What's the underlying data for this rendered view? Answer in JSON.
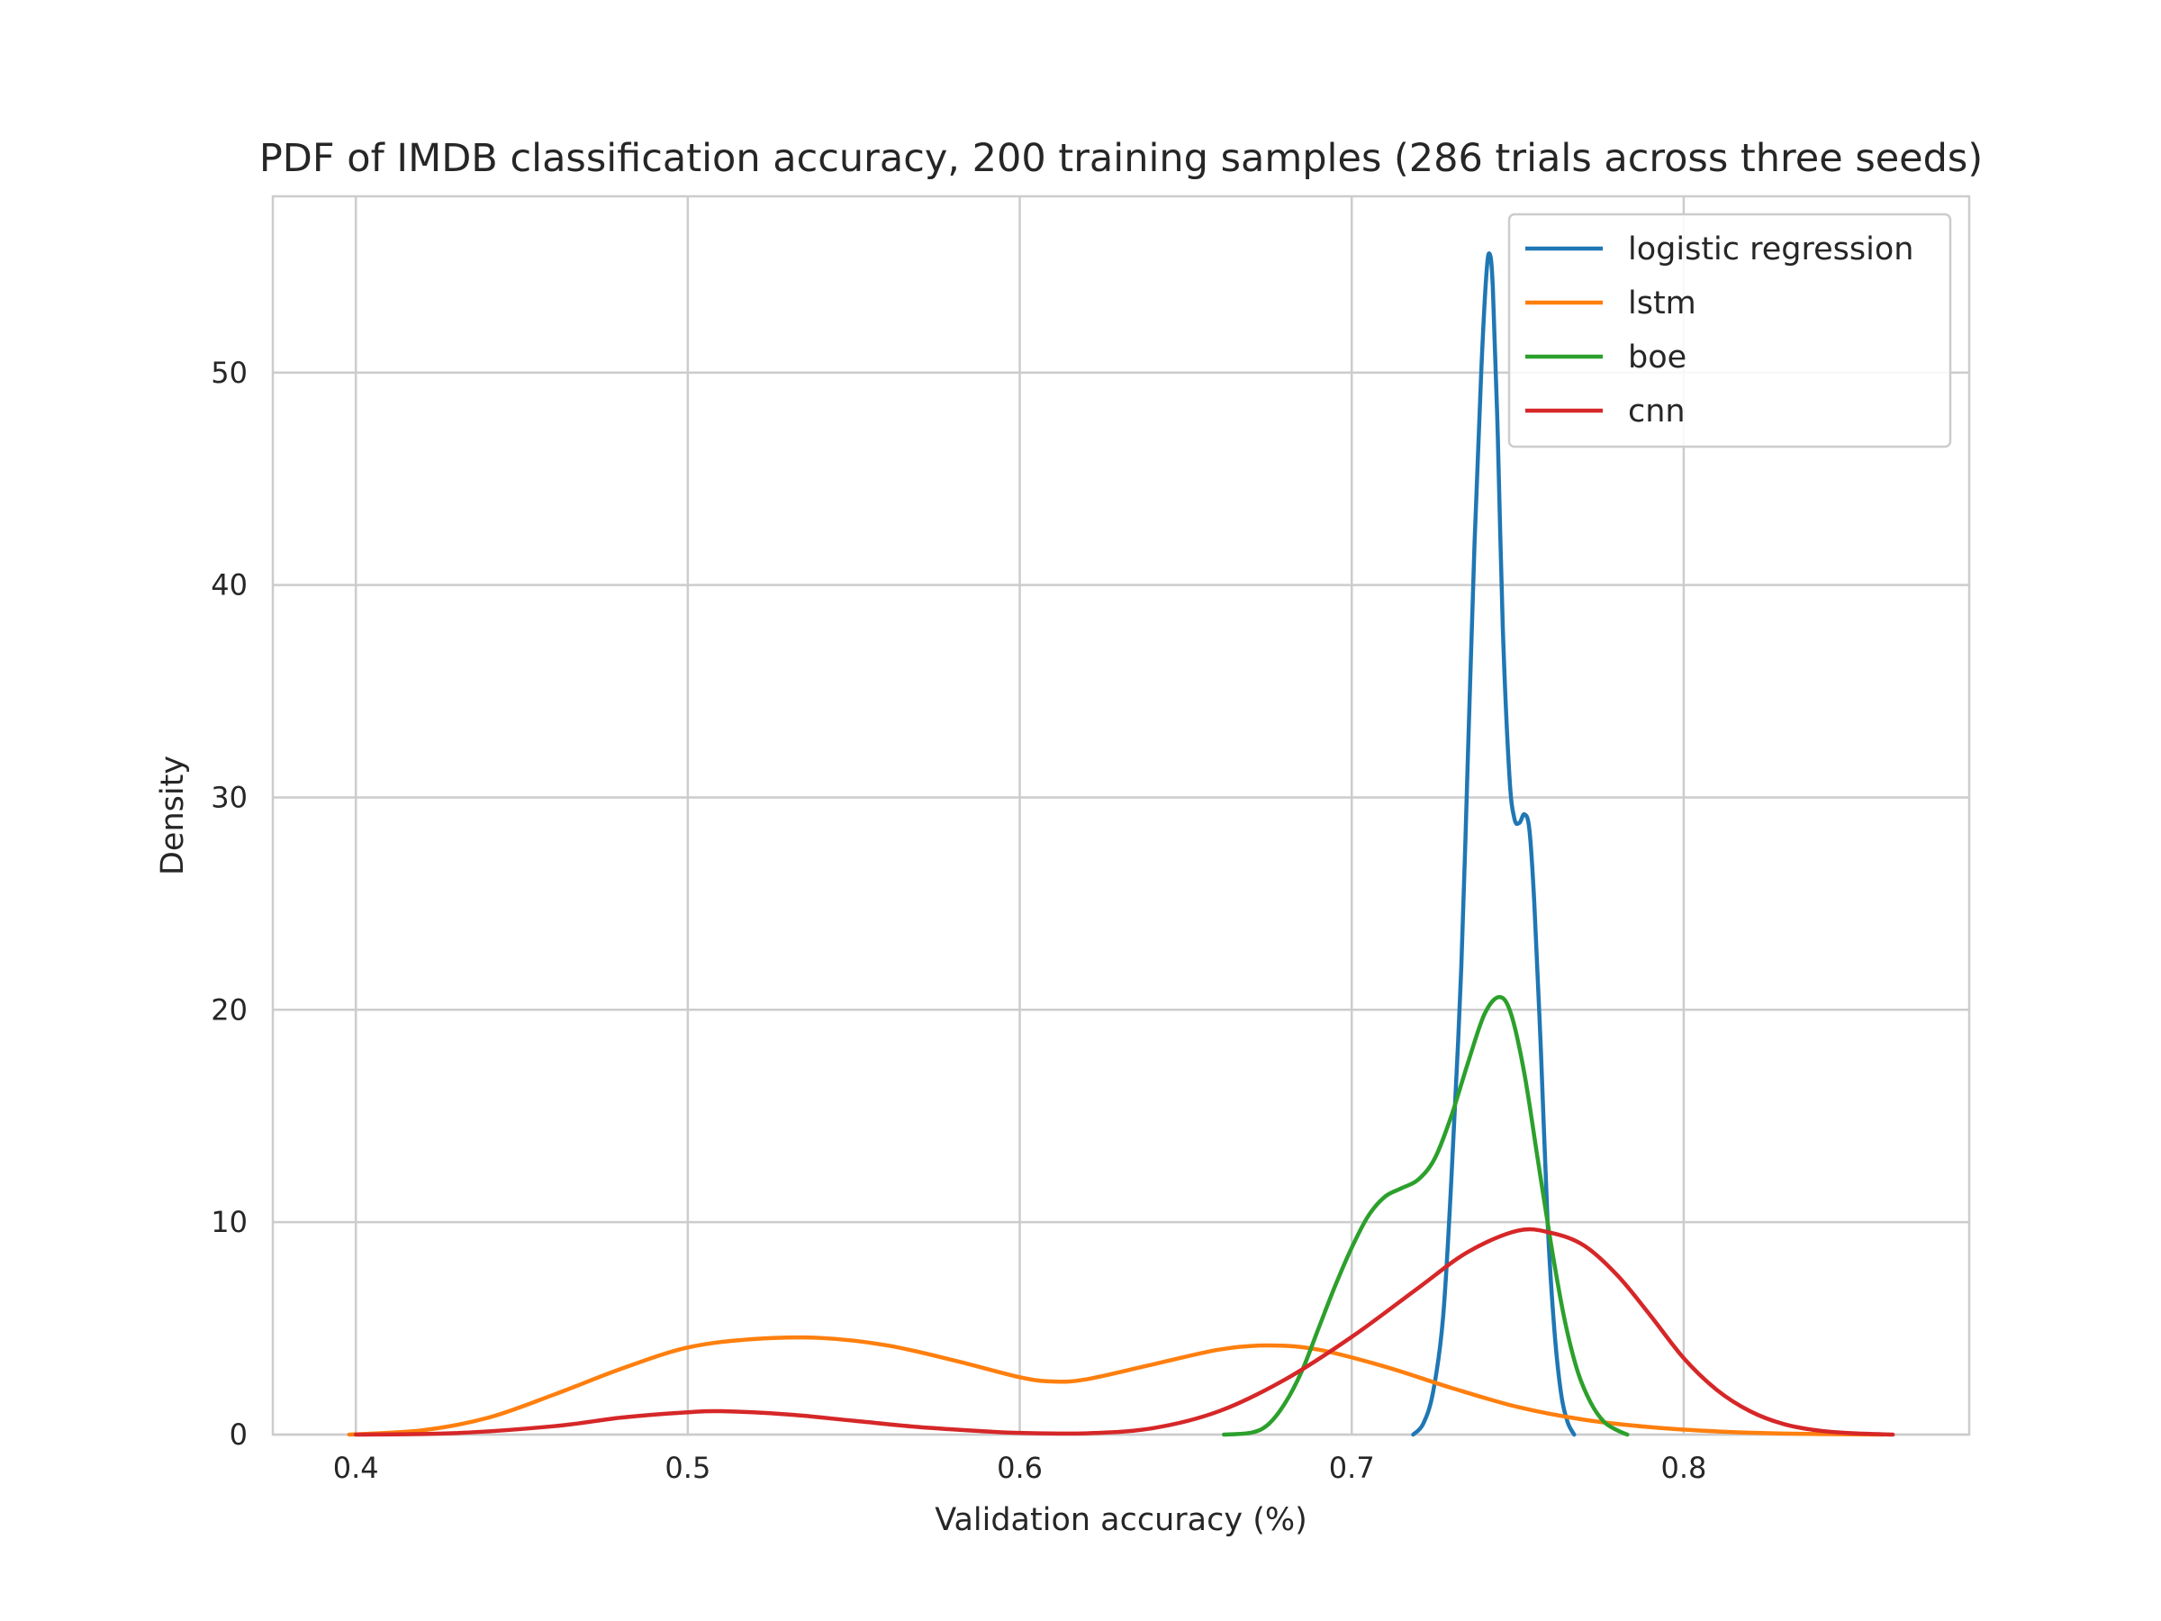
{
  "chart_data": {
    "type": "line",
    "title": "PDF of IMDB classification accuracy, 200 training samples (286 trials across three seeds)",
    "xlabel": "Validation accuracy (%)",
    "ylabel": "Density",
    "xlim": [
      0.375,
      0.886
    ],
    "ylim": [
      0,
      58.3
    ],
    "xticks": [
      0.4,
      0.5,
      0.6,
      0.7,
      0.8
    ],
    "xtick_labels": [
      "0.4",
      "0.5",
      "0.6",
      "0.7",
      "0.8"
    ],
    "yticks": [
      0,
      10,
      20,
      30,
      40,
      50
    ],
    "ytick_labels": [
      "0",
      "10",
      "20",
      "30",
      "40",
      "50"
    ],
    "grid": true,
    "legend_position": "top-right",
    "series": [
      {
        "name": "logistic regression",
        "color": "#1f77b4",
        "points": [
          [
            0.7185,
            0
          ],
          [
            0.7215,
            0.5
          ],
          [
            0.7245,
            2
          ],
          [
            0.7275,
            5.5
          ],
          [
            0.73,
            12
          ],
          [
            0.733,
            22
          ],
          [
            0.735,
            32
          ],
          [
            0.737,
            42
          ],
          [
            0.739,
            50
          ],
          [
            0.7405,
            54.5
          ],
          [
            0.7415,
            55.6
          ],
          [
            0.7425,
            54
          ],
          [
            0.744,
            47
          ],
          [
            0.7455,
            38
          ],
          [
            0.7475,
            31
          ],
          [
            0.749,
            29
          ],
          [
            0.7505,
            28.8
          ],
          [
            0.752,
            29.2
          ],
          [
            0.7535,
            28.5
          ],
          [
            0.755,
            25
          ],
          [
            0.757,
            18
          ],
          [
            0.759,
            10
          ],
          [
            0.761,
            5
          ],
          [
            0.763,
            2
          ],
          [
            0.765,
            0.6
          ],
          [
            0.767,
            0
          ]
        ]
      },
      {
        "name": "lstm",
        "color": "#ff7f0e",
        "points": [
          [
            0.398,
            0
          ],
          [
            0.42,
            0.2
          ],
          [
            0.44,
            0.8
          ],
          [
            0.46,
            1.9
          ],
          [
            0.48,
            3.1
          ],
          [
            0.5,
            4.1
          ],
          [
            0.52,
            4.5
          ],
          [
            0.54,
            4.55
          ],
          [
            0.56,
            4.2
          ],
          [
            0.58,
            3.5
          ],
          [
            0.6,
            2.7
          ],
          [
            0.61,
            2.5
          ],
          [
            0.62,
            2.6
          ],
          [
            0.64,
            3.3
          ],
          [
            0.66,
            4.0
          ],
          [
            0.675,
            4.2
          ],
          [
            0.69,
            4.0
          ],
          [
            0.71,
            3.2
          ],
          [
            0.73,
            2.2
          ],
          [
            0.75,
            1.3
          ],
          [
            0.77,
            0.7
          ],
          [
            0.79,
            0.35
          ],
          [
            0.81,
            0.15
          ],
          [
            0.83,
            0.05
          ],
          [
            0.86,
            0
          ]
        ]
      },
      {
        "name": "boe",
        "color": "#2ca02c",
        "points": [
          [
            0.6615,
            0
          ],
          [
            0.67,
            0.1
          ],
          [
            0.675,
            0.5
          ],
          [
            0.68,
            1.5
          ],
          [
            0.685,
            3.0
          ],
          [
            0.69,
            5.0
          ],
          [
            0.695,
            7.0
          ],
          [
            0.7,
            8.8
          ],
          [
            0.705,
            10.3
          ],
          [
            0.71,
            11.2
          ],
          [
            0.715,
            11.6
          ],
          [
            0.72,
            12.0
          ],
          [
            0.725,
            13.0
          ],
          [
            0.73,
            15.0
          ],
          [
            0.735,
            17.5
          ],
          [
            0.74,
            19.8
          ],
          [
            0.7445,
            20.6
          ],
          [
            0.748,
            19.8
          ],
          [
            0.752,
            17.0
          ],
          [
            0.756,
            13.0
          ],
          [
            0.76,
            9.0
          ],
          [
            0.764,
            5.5
          ],
          [
            0.768,
            3.0
          ],
          [
            0.772,
            1.5
          ],
          [
            0.776,
            0.6
          ],
          [
            0.78,
            0.2
          ],
          [
            0.783,
            0
          ]
        ]
      },
      {
        "name": "cnn",
        "color": "#d62728",
        "points": [
          [
            0.4,
            0
          ],
          [
            0.43,
            0.07
          ],
          [
            0.46,
            0.4
          ],
          [
            0.48,
            0.8
          ],
          [
            0.5,
            1.05
          ],
          [
            0.51,
            1.1
          ],
          [
            0.53,
            0.95
          ],
          [
            0.55,
            0.65
          ],
          [
            0.57,
            0.35
          ],
          [
            0.59,
            0.15
          ],
          [
            0.6,
            0.08
          ],
          [
            0.62,
            0.06
          ],
          [
            0.64,
            0.3
          ],
          [
            0.66,
            1.1
          ],
          [
            0.68,
            2.6
          ],
          [
            0.7,
            4.6
          ],
          [
            0.72,
            6.9
          ],
          [
            0.735,
            8.6
          ],
          [
            0.75,
            9.6
          ],
          [
            0.76,
            9.5
          ],
          [
            0.77,
            8.9
          ],
          [
            0.78,
            7.5
          ],
          [
            0.79,
            5.6
          ],
          [
            0.8,
            3.6
          ],
          [
            0.81,
            2.1
          ],
          [
            0.82,
            1.1
          ],
          [
            0.83,
            0.5
          ],
          [
            0.84,
            0.2
          ],
          [
            0.85,
            0.07
          ],
          [
            0.863,
            0
          ]
        ]
      }
    ]
  }
}
